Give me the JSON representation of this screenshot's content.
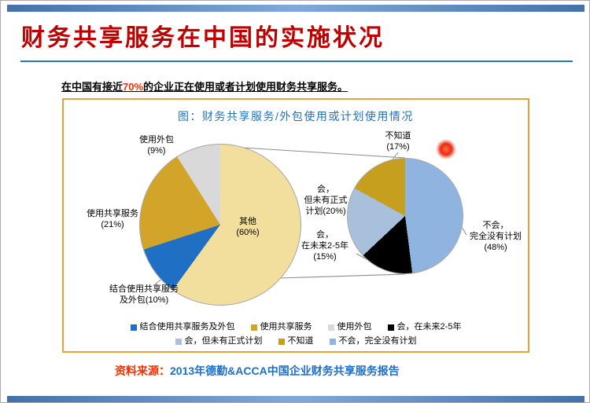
{
  "colors": {
    "title_red": "#C00000",
    "accent_red": "#F23000",
    "heading_blue": "#2173BE",
    "rule_blue": "#2E75B6",
    "bar_blue": "#4472A8",
    "box_orange": "#E8A23C",
    "source_blue": "#1F6FC5"
  },
  "slide": {
    "title": "财务共享服务在中国的实施状况",
    "subtitle": {
      "prefix": "在中国有接近",
      "highlight": "70%",
      "suffix": "的企业正在使用或者计划使用财务共享服务。"
    },
    "source": {
      "prefix": "资料来源：",
      "text": "2013年德勤&ACCA中国企业财务共享服务报告"
    }
  },
  "chart_data": {
    "type": "pie",
    "variant": "pie-of-pie",
    "title": "图：财务共享服务/外包使用或计划使用情况",
    "primary_pie": {
      "description": "使用情况总体分布，从12点方向顺时针",
      "slices": [
        {
          "label": "其他",
          "value": 60,
          "color": "#F2DF9D"
        },
        {
          "label": "结合使用共享服务及外包",
          "value": 10,
          "color": "#1F6FC5"
        },
        {
          "label": "使用共享服务",
          "value": 21,
          "color": "#D2A42A"
        },
        {
          "label": "使用外包",
          "value": 9,
          "color": "#D9D9D9"
        }
      ]
    },
    "secondary_pie": {
      "description": "其他(60%)的细分：计划使用情况，从12点方向顺时针",
      "slices": [
        {
          "label": "不会，完全没有计划",
          "value": 48,
          "color": "#8FB4E0"
        },
        {
          "label": "会，在未来2-5年",
          "value": 15,
          "color": "#000000"
        },
        {
          "label": "会，但未有正式计划",
          "value": 20,
          "color": "#A9C0DC"
        },
        {
          "label": "不知道",
          "value": 17,
          "color": "#C79F1F"
        }
      ]
    },
    "callouts": {
      "outsourcing": "使用外包\n(9%)",
      "shared_services": "使用共享服务\n(21%)",
      "combined": "结合使用共享服务\n及外包(10%)",
      "other": "其他\n(60%)",
      "dont_know": "不知道\n(17%)",
      "will_no_formal_plan": "会，\n但未有正式\n计划(20%)",
      "will_in_2_5_years": "会，\n在未来2-5年\n(15%)",
      "wont_no_plan": "不会，\n完全没有计划\n(48%)"
    },
    "legend": {
      "row1": [
        {
          "label": "结合使用共享服务及外包",
          "color": "#1F6FC5"
        },
        {
          "label": "使用共享服务",
          "color": "#D2A42A"
        },
        {
          "label": "使用外包",
          "color": "#D9D9D9"
        },
        {
          "label": "会，在未来2-5年",
          "color": "#000000"
        }
      ],
      "row2": [
        {
          "label": "会，但未有正式计划",
          "color": "#A9C0DC"
        },
        {
          "label": "不知道",
          "color": "#C79F1F"
        },
        {
          "label": "不会，完全没有计划",
          "color": "#8FB4E0"
        }
      ]
    }
  }
}
